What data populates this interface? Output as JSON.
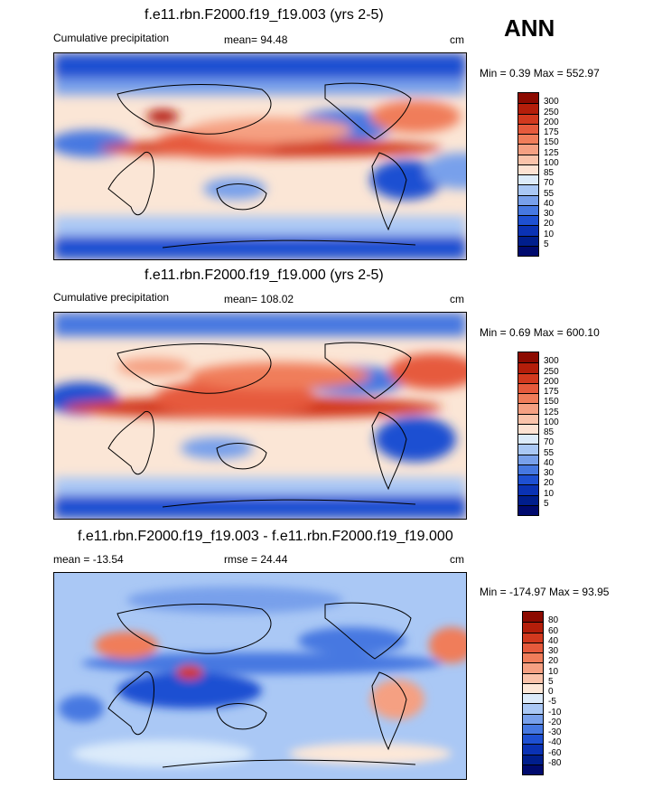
{
  "season": "ANN",
  "panels": [
    {
      "title": "f.e11.rbn.F2000.f19_f19.003 (yrs 2-5)",
      "left_label": "Cumulative precipitation",
      "mean_label": "mean=  94.48",
      "units": "cm",
      "minmax": "Min =   0.39 Max = 552.97"
    },
    {
      "title": "f.e11.rbn.F2000.f19_f19.000 (yrs 2-5)",
      "left_label": "Cumulative precipitation",
      "mean_label": "mean= 108.02",
      "units": "cm",
      "minmax": "Min =   0.69 Max = 600.10"
    },
    {
      "title": "f.e11.rbn.F2000.f19_f19.003 - f.e11.rbn.F2000.f19_f19.000",
      "left_label": "mean = -13.54",
      "mean_label": "rmse =  24.44",
      "units": "cm",
      "minmax": "Min = -174.97 Max =  93.95"
    }
  ],
  "colorbar_abs": {
    "labels": [
      "300",
      "250",
      "200",
      "175",
      "150",
      "125",
      "100",
      "85",
      "70",
      "55",
      "40",
      "30",
      "20",
      "10",
      "5"
    ],
    "colors": [
      "#8c0a00",
      "#b41e0a",
      "#d2391e",
      "#e65a3c",
      "#f07d5a",
      "#f5a082",
      "#fac3aa",
      "#fde2d2",
      "#dcebfa",
      "#aac8f5",
      "#78a0eb",
      "#4678e1",
      "#1e50d2",
      "#0a32b4",
      "#001e8c",
      "#000a6e"
    ]
  },
  "colorbar_diff": {
    "labels": [
      "80",
      "60",
      "40",
      "30",
      "20",
      "10",
      "5",
      "0",
      "-5",
      "-10",
      "-20",
      "-30",
      "-40",
      "-60",
      "-80"
    ],
    "colors": [
      "#8c0a00",
      "#b41e0a",
      "#d2391e",
      "#e65a3c",
      "#f07d5a",
      "#f5a082",
      "#fac3aa",
      "#fde8d8",
      "#dcebfa",
      "#aac8f5",
      "#78a0eb",
      "#4678e1",
      "#1e50d2",
      "#0a32b4",
      "#001e8c",
      "#000a6e"
    ]
  }
}
